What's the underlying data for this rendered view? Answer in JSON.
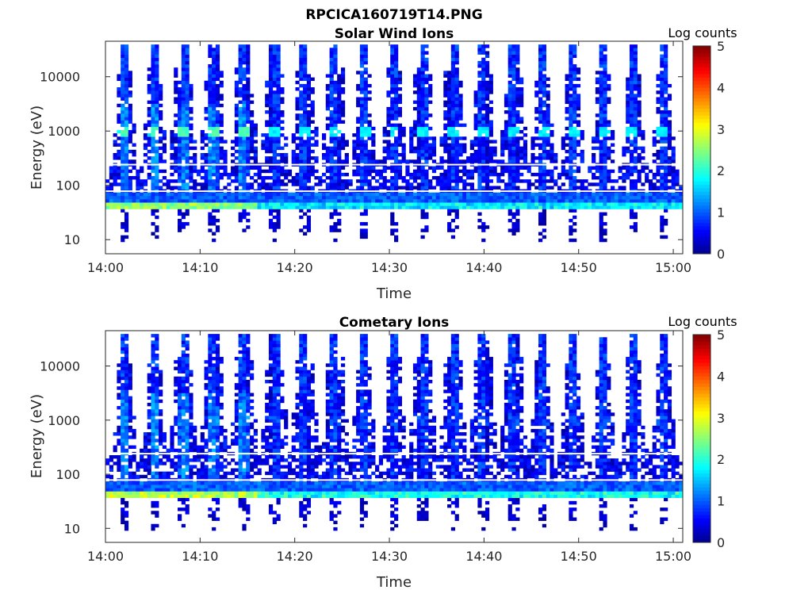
{
  "figure": {
    "title": "RPCICA160719T14.PNG"
  },
  "colormap": {
    "name": "jet",
    "stops": [
      "#00008f",
      "#0000ff",
      "#00ffff",
      "#ffff00",
      "#ff0000",
      "#800000"
    ]
  },
  "chart_data": [
    {
      "type": "heatmap",
      "title": "Solar Wind Ions",
      "xlabel": "Time",
      "ylabel": "Energy (eV)",
      "y_scale": "log",
      "ylim": [
        5.5,
        45000
      ],
      "xlim": [
        "14:00",
        "15:01"
      ],
      "x_ticks": [
        "14:00",
        "14:10",
        "14:20",
        "14:30",
        "14:40",
        "14:50",
        "15:00"
      ],
      "y_ticks": [
        "10",
        "100",
        "1000",
        "10000"
      ],
      "colorbar": {
        "label": "Log counts",
        "range": [
          0,
          5
        ],
        "ticks": [
          "0",
          "1",
          "2",
          "3",
          "4",
          "5"
        ]
      },
      "sweep_peaks_minutes": [
        2.0,
        5.2,
        8.3,
        11.4,
        14.6,
        17.9,
        21.0,
        24.2,
        27.3,
        30.5,
        33.6,
        36.8,
        39.9,
        43.1,
        46.2,
        49.4,
        52.6,
        55.7,
        58.9
      ],
      "band_energy_range_eV": [
        38,
        75
      ],
      "band_peak_log_counts": 2.5,
      "secondary_band_energy_eV": 1000,
      "secondary_band_log_counts": 1.6
    },
    {
      "type": "heatmap",
      "title": "Cometary Ions",
      "xlabel": "Time",
      "ylabel": "Energy (eV)",
      "y_scale": "log",
      "ylim": [
        5.5,
        45000
      ],
      "xlim": [
        "14:00",
        "15:01"
      ],
      "x_ticks": [
        "14:00",
        "14:10",
        "14:20",
        "14:30",
        "14:40",
        "14:50",
        "15:00"
      ],
      "y_ticks": [
        "10",
        "100",
        "1000",
        "10000"
      ],
      "colorbar": {
        "label": "Log counts",
        "range": [
          0,
          5
        ],
        "ticks": [
          "0",
          "1",
          "2",
          "3",
          "4",
          "5"
        ]
      },
      "sweep_peaks_minutes": [
        2.0,
        5.2,
        8.3,
        11.4,
        14.6,
        17.9,
        21.0,
        24.2,
        27.3,
        30.5,
        33.6,
        36.8,
        39.9,
        43.1,
        46.2,
        49.4,
        52.6,
        55.7,
        58.9
      ],
      "band_energy_range_eV": [
        38,
        75
      ],
      "band_peak_log_counts": 2.6,
      "secondary_band_energy_eV": 1000,
      "secondary_band_log_counts": 0.9
    }
  ]
}
